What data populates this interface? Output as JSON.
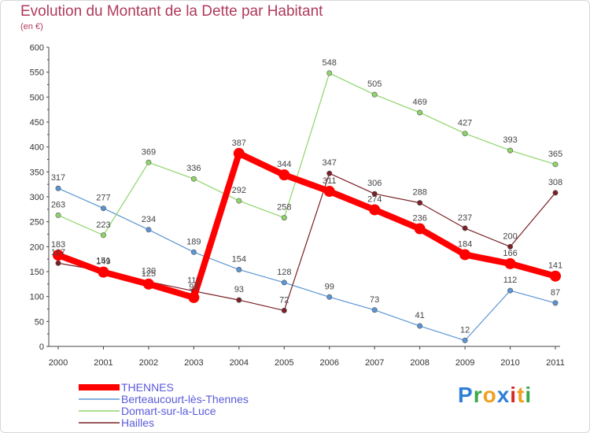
{
  "header": {
    "title": "Evolution du Montant de la Dette par Habitant",
    "subtitle": "(en €)"
  },
  "logo": {
    "text": "Proxiti",
    "letters": [
      "P",
      "r",
      "o",
      "x",
      "i",
      "t",
      "i"
    ],
    "colors": [
      "#2e7fd8",
      "#3aa84a",
      "#f0a020",
      "#2e7fd8",
      "#d8282a",
      "#f0a020",
      "#3aa84a"
    ]
  },
  "chart_data": {
    "type": "line",
    "x": [
      "2000",
      "2001",
      "2002",
      "2003",
      "2004",
      "2005",
      "2006",
      "2007",
      "2008",
      "2009",
      "2010",
      "2011"
    ],
    "ylim": [
      0,
      600
    ],
    "yticks": [
      0,
      50,
      100,
      150,
      200,
      250,
      300,
      350,
      400,
      450,
      500,
      550,
      600
    ],
    "grid": false,
    "legend_position": "bottom-left",
    "series": [
      {
        "name": "THENNES",
        "color": "#ff0000",
        "values": [
          183,
          149,
          125,
          98,
          387,
          344,
          311,
          274,
          236,
          184,
          166,
          141
        ],
        "labels": [
          "183",
          "149",
          "125",
          "98",
          "387",
          "344",
          "311",
          "274",
          "236",
          "184",
          "166",
          "141"
        ],
        "bold": true
      },
      {
        "name": "Berteaucourt-lès-Thennes",
        "color": "#5b95d4",
        "values": [
          317,
          277,
          234,
          189,
          154,
          128,
          99,
          73,
          41,
          12,
          112,
          87
        ],
        "labels": [
          "317",
          "277",
          "234",
          "189",
          "154",
          "128",
          "99",
          "73",
          "41",
          "12",
          "112",
          "87"
        ]
      },
      {
        "name": "Domart-sur-la-Luce",
        "color": "#8fd46a",
        "values": [
          263,
          223,
          369,
          336,
          292,
          258,
          548,
          505,
          469,
          427,
          393,
          365
        ],
        "labels": [
          "263",
          "223",
          "369",
          "336",
          "292",
          "258",
          "548",
          "505",
          "469",
          "427",
          "393",
          "365"
        ]
      },
      {
        "name": "Hailles",
        "color": "#7a2026",
        "values": [
          167,
          151,
          130,
          111,
          93,
          72,
          347,
          306,
          288,
          237,
          200,
          308
        ],
        "labels": [
          "167",
          "151",
          "130",
          "111",
          "93",
          "72",
          "347",
          "306",
          "288",
          "237",
          "200",
          "308"
        ]
      }
    ]
  }
}
